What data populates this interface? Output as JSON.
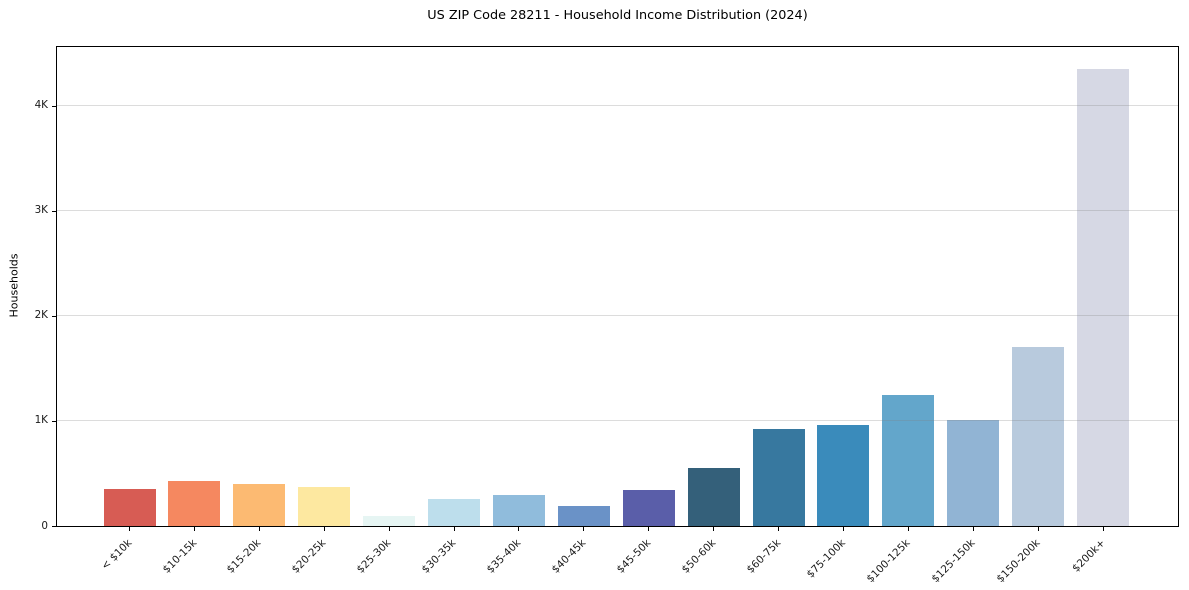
{
  "chart_data": {
    "type": "bar",
    "title": "US ZIP Code 28211 - Household Income Distribution (2024)",
    "xlabel": "",
    "ylabel": "Households",
    "ylim": [
      0,
      4560
    ],
    "grid": "horizontal gridlines at 1K steps, drawn faintly over bars",
    "legend_position": "none",
    "categories": [
      "< $10k",
      "$10-15k",
      "$15-20k",
      "$20-25k",
      "$25-30k",
      "$30-35k",
      "$35-40k",
      "$40-45k",
      "$45-50k",
      "$50-60k",
      "$60-75k",
      "$75-100k",
      "$100-125k",
      "$125-150k",
      "$150-200k",
      "$200k+"
    ],
    "values": [
      355,
      430,
      400,
      375,
      100,
      255,
      300,
      195,
      340,
      555,
      925,
      960,
      1250,
      1005,
      1705,
      4350
    ],
    "bar_colors": [
      "#d75c54",
      "#f58860",
      "#fcba72",
      "#fde8a0",
      "#e6f5f3",
      "#bddeec",
      "#90bcdc",
      "#6a92c7",
      "#5a5ea9",
      "#34607a",
      "#37789f",
      "#3a8bbb",
      "#63a6cb",
      "#91b4d4",
      "#b8cadd",
      "#d6d8e4"
    ],
    "yticks": [
      {
        "v": 0,
        "label": "0"
      },
      {
        "v": 1000,
        "label": "1K"
      },
      {
        "v": 2000,
        "label": "2K"
      },
      {
        "v": 3000,
        "label": "3K"
      },
      {
        "v": 4000,
        "label": "4K"
      }
    ],
    "colors": {
      "background": "#ffffff",
      "spine": "#000000",
      "text": "#000000"
    }
  }
}
